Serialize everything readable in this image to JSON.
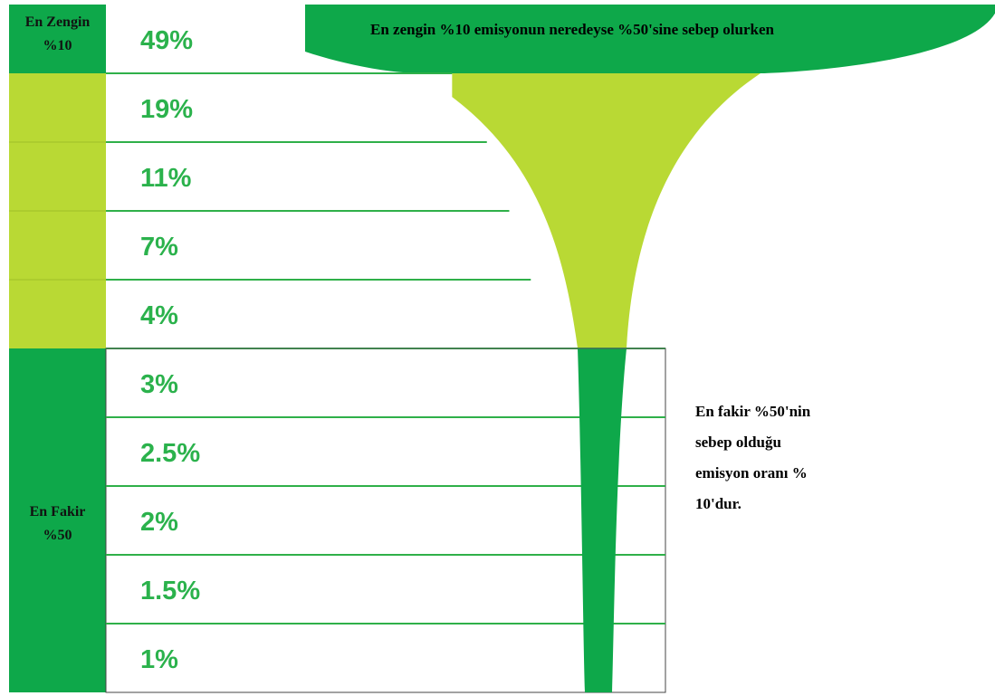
{
  "colors": {
    "dark_green": "#0ea84a",
    "light_green": "#b9d934",
    "value_text": "#2bb24c",
    "divider": "#2fb049"
  },
  "chart_data": {
    "type": "bar",
    "title": "",
    "xlabel": "",
    "ylabel": "",
    "orientation": "horizontal-funnel",
    "categories": [
      "",
      "",
      "",
      "",
      "",
      "",
      "",
      "",
      "",
      ""
    ],
    "value_labels": [
      "49%",
      "19%",
      "11%",
      "7%",
      "4%",
      "3%",
      "2.5%",
      "2%",
      "1.5%",
      "1%"
    ],
    "values": [
      49,
      19,
      11,
      7,
      4,
      3,
      2.5,
      2,
      1.5,
      1
    ],
    "groups": [
      {
        "label_line1": "En Zengin",
        "label_line2": "%10",
        "rows": [
          0,
          0
        ],
        "color": "dark"
      },
      {
        "label_line1": "",
        "label_line2": "",
        "rows": [
          1,
          4
        ],
        "color": "light"
      },
      {
        "label_line1": "En Fakir",
        "label_line2": "%50",
        "rows": [
          5,
          9
        ],
        "color": "dark"
      }
    ],
    "annotations": {
      "top": "En zengin %10 emisyonun neredeyse %50'sine sebep olurken",
      "bottom_lines": [
        "En fakir %50'nin",
        "sebep olduğu",
        "emisyon oranı %",
        "10'dur."
      ]
    }
  }
}
